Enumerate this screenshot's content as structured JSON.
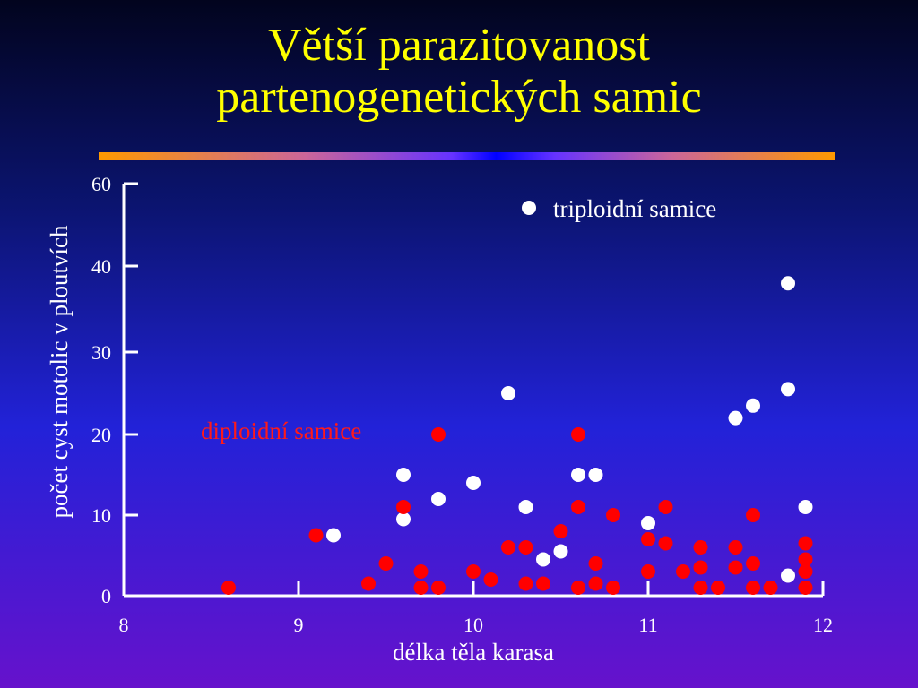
{
  "title": {
    "line1": "Větší parazitovanost",
    "line2": "partenogenetických samic"
  },
  "colors": {
    "title": "#ffff00",
    "axis": "#ffffff",
    "triploid": "#ffffff",
    "diploid": "#ff0000"
  },
  "chart_data": {
    "type": "scatter",
    "title": "",
    "xlabel": "délka těla karasa",
    "ylabel": "počet cyst motolic v ploutvích",
    "xlim": [
      8,
      12
    ],
    "ylim": [
      0,
      60
    ],
    "x_ticks": [
      "8",
      "9",
      "10",
      "11",
      "12"
    ],
    "y_ticks": [
      "0",
      "10",
      "20",
      "30",
      "40",
      "60"
    ],
    "legend": "top-right",
    "grid": false,
    "series": [
      {
        "name": "triploidní samice",
        "color": "#ffffff",
        "points": [
          [
            9.2,
            7.5
          ],
          [
            9.6,
            15
          ],
          [
            9.6,
            9.5
          ],
          [
            9.8,
            12
          ],
          [
            10.0,
            14
          ],
          [
            10.2,
            25
          ],
          [
            10.3,
            11
          ],
          [
            10.4,
            4.5
          ],
          [
            10.5,
            5.5
          ],
          [
            10.6,
            15
          ],
          [
            10.7,
            15
          ],
          [
            11.0,
            9
          ],
          [
            11.5,
            22
          ],
          [
            11.6,
            23.5
          ],
          [
            11.8,
            2.5
          ],
          [
            11.8,
            25.5
          ],
          [
            11.8,
            38
          ],
          [
            11.9,
            11
          ]
        ]
      },
      {
        "name": "diploidní samice",
        "color": "#ff0000",
        "points": [
          [
            8.6,
            1
          ],
          [
            9.1,
            7.5
          ],
          [
            9.4,
            1.5
          ],
          [
            9.5,
            4
          ],
          [
            9.6,
            11
          ],
          [
            9.7,
            1
          ],
          [
            9.7,
            3
          ],
          [
            9.8,
            1
          ],
          [
            9.8,
            20
          ],
          [
            10.0,
            3
          ],
          [
            10.1,
            2
          ],
          [
            10.2,
            6
          ],
          [
            10.3,
            1.5
          ],
          [
            10.3,
            6
          ],
          [
            10.4,
            1.5
          ],
          [
            10.5,
            8
          ],
          [
            10.6,
            1
          ],
          [
            10.6,
            20
          ],
          [
            10.6,
            11
          ],
          [
            10.7,
            1.5
          ],
          [
            10.7,
            4
          ],
          [
            10.8,
            1
          ],
          [
            10.8,
            10
          ],
          [
            11.0,
            3
          ],
          [
            11.0,
            7
          ],
          [
            11.1,
            6.5
          ],
          [
            11.1,
            11
          ],
          [
            11.2,
            3
          ],
          [
            11.3,
            1
          ],
          [
            11.3,
            6
          ],
          [
            11.3,
            3.5
          ],
          [
            11.4,
            1
          ],
          [
            11.5,
            3.5
          ],
          [
            11.5,
            6
          ],
          [
            11.6,
            1
          ],
          [
            11.6,
            4
          ],
          [
            11.6,
            10
          ],
          [
            11.7,
            1
          ],
          [
            11.9,
            1
          ],
          [
            11.9,
            3
          ],
          [
            11.9,
            4.5
          ],
          [
            11.9,
            6.5
          ]
        ]
      }
    ]
  }
}
